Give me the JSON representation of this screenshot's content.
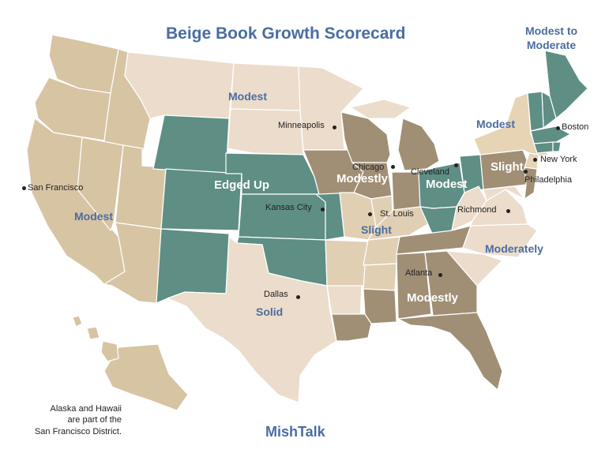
{
  "title": "Beige Book Growth Scorecard",
  "footer": "MishTalk",
  "note": [
    "Alaska and Hawaii",
    "are part of the",
    "San Francisco District."
  ],
  "colors": {
    "san_francisco": "#d7c4a3",
    "minneapolis": "#ecdccb",
    "kansas_city": "#5e8e84",
    "dallas": "#ecdccb",
    "chicago": "#a08f75",
    "st_louis": "#e1cfb4",
    "cleveland": "#5e8e84",
    "atlanta": "#a08f75",
    "richmond": "#ecdccb",
    "philadelphia": "#a08f75",
    "new_york": "#e6d4b4",
    "boston": "#5e8e84",
    "label_blue": "#4a6da0"
  },
  "districts": {
    "san_francisco": {
      "label": "Modest",
      "city": "San Francisco"
    },
    "minneapolis": {
      "label": "Modest",
      "city": "Minneapolis"
    },
    "kansas_city": {
      "label": "Edged Up",
      "city": "Kansas City"
    },
    "dallas": {
      "label": "Solid",
      "city": "Dallas"
    },
    "chicago": {
      "label": "Modestly",
      "city": "Chicago"
    },
    "st_louis": {
      "label": "Slight",
      "city": "St. Louis"
    },
    "cleveland": {
      "label": "Modest",
      "city": "Cleveland"
    },
    "atlanta": {
      "label": "Modestly",
      "city": "Atlanta"
    },
    "richmond": {
      "label": "Moderately",
      "city": "Richmond"
    },
    "philadelphia": {
      "label": "Slight",
      "city": "Philadelphia"
    },
    "new_york": {
      "label": "Modest",
      "city": "New York"
    },
    "boston": {
      "label_line1": "Modest to",
      "label_line2": "Moderate",
      "city": "Boston"
    }
  }
}
